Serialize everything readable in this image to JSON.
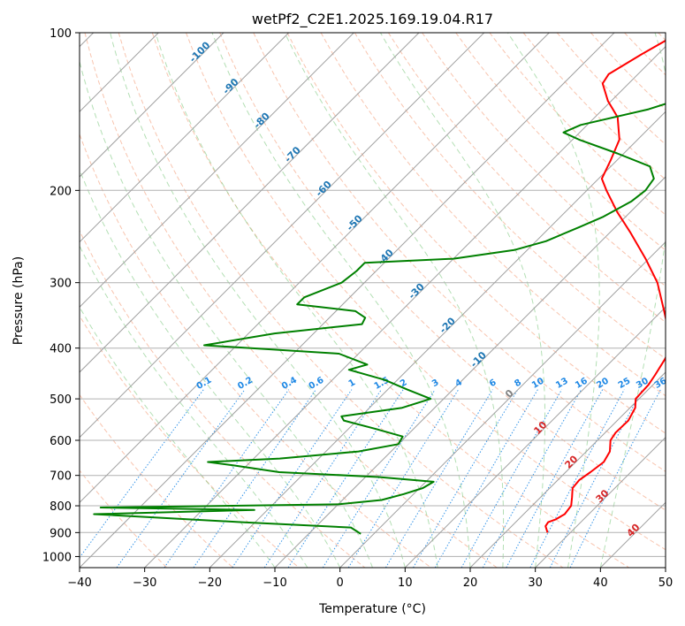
{
  "chart_data": {
    "type": "line",
    "title": "wetPf2_C2E1.2025.169.19.04.R17",
    "xlabel": "Temperature (°C)",
    "ylabel": "Pressure (hPa)",
    "xlim": [
      -40,
      50
    ],
    "ylim": [
      1050,
      100
    ],
    "y_scale": "log",
    "x_ticks": [
      -40,
      -30,
      -20,
      -10,
      0,
      10,
      20,
      30,
      40,
      50
    ],
    "y_ticks": [
      100,
      200,
      300,
      400,
      500,
      600,
      700,
      800,
      900,
      1000
    ],
    "grid": true,
    "colors": {
      "temperature": "#ff0000",
      "dewpoint": "#008000",
      "dry_adiabats": "#f4a582",
      "moist_adiabats": "#74c476",
      "mixing_ratio": "#1e88e5",
      "isotherms": "#808080",
      "isotherm_labels": "#1f77b4",
      "isotherm_labels_warm": "#d62728"
    },
    "isotherm_labels": [
      -100,
      -90,
      -80,
      -70,
      -60,
      -50,
      -40,
      -30,
      -20,
      -10,
      0,
      10,
      20,
      30,
      40
    ],
    "mixing_ratio_labels": [
      "0.1",
      "0.2",
      "0.4",
      "0.6",
      "1",
      "1.5",
      "2",
      "3",
      "4",
      "6",
      "8",
      "10",
      "13",
      "16",
      "20",
      "25",
      "30",
      "36"
    ],
    "series": [
      {
        "role": "temperature",
        "points": [
          {
            "p": 900,
            "t": 26.5
          },
          {
            "p": 875,
            "t": 25.2
          },
          {
            "p": 860,
            "t": 25.0
          },
          {
            "p": 850,
            "t": 25.7
          },
          {
            "p": 830,
            "t": 26.3
          },
          {
            "p": 800,
            "t": 26.0
          },
          {
            "p": 770,
            "t": 24.8
          },
          {
            "p": 740,
            "t": 23.5
          },
          {
            "p": 715,
            "t": 23.3
          },
          {
            "p": 690,
            "t": 23.8
          },
          {
            "p": 660,
            "t": 24.3
          },
          {
            "p": 630,
            "t": 23.6
          },
          {
            "p": 600,
            "t": 22.0
          },
          {
            "p": 580,
            "t": 21.6
          },
          {
            "p": 550,
            "t": 21.7
          },
          {
            "p": 520,
            "t": 20.8
          },
          {
            "p": 500,
            "t": 19.5
          },
          {
            "p": 470,
            "t": 19.3
          },
          {
            "p": 450,
            "t": 18.8
          },
          {
            "p": 420,
            "t": 17.9
          },
          {
            "p": 400,
            "t": 17.0
          },
          {
            "p": 370,
            "t": 14.0
          },
          {
            "p": 340,
            "t": 10.4
          },
          {
            "p": 300,
            "t": 5.0
          },
          {
            "p": 270,
            "t": -0.5
          },
          {
            "p": 240,
            "t": -7.0
          },
          {
            "p": 220,
            "t": -12.0
          },
          {
            "p": 200,
            "t": -17.0
          },
          {
            "p": 190,
            "t": -19.5
          },
          {
            "p": 175,
            "t": -21.0
          },
          {
            "p": 160,
            "t": -22.8
          },
          {
            "p": 145,
            "t": -26.5
          },
          {
            "p": 135,
            "t": -30.5
          },
          {
            "p": 125,
            "t": -34.0
          },
          {
            "p": 120,
            "t": -34.5
          },
          {
            "p": 110,
            "t": -32.5
          },
          {
            "p": 100,
            "t": -30.0
          }
        ]
      },
      {
        "role": "dewpoint",
        "points": [
          {
            "p": 905,
            "t": -2.0
          },
          {
            "p": 895,
            "t": -3.0
          },
          {
            "p": 880,
            "t": -4.5
          },
          {
            "p": 860,
            "t": -22.0
          },
          {
            "p": 830,
            "t": -46.0
          },
          {
            "p": 815,
            "t": -22.0
          },
          {
            "p": 806,
            "t": -46.0
          },
          {
            "p": 795,
            "t": -10.0
          },
          {
            "p": 780,
            "t": -4.0
          },
          {
            "p": 760,
            "t": -1.5
          },
          {
            "p": 740,
            "t": 0.5
          },
          {
            "p": 720,
            "t": 1.2
          },
          {
            "p": 705,
            "t": -8.0
          },
          {
            "p": 690,
            "t": -24.0
          },
          {
            "p": 670,
            "t": -32.0
          },
          {
            "p": 660,
            "t": -36.5
          },
          {
            "p": 650,
            "t": -26.0
          },
          {
            "p": 630,
            "t": -15.0
          },
          {
            "p": 610,
            "t": -10.0
          },
          {
            "p": 590,
            "t": -10.5
          },
          {
            "p": 570,
            "t": -16.0
          },
          {
            "p": 550,
            "t": -22.0
          },
          {
            "p": 540,
            "t": -23.0
          },
          {
            "p": 520,
            "t": -15.0
          },
          {
            "p": 500,
            "t": -12.0
          },
          {
            "p": 480,
            "t": -17.0
          },
          {
            "p": 460,
            "t": -22.0
          },
          {
            "p": 440,
            "t": -29.0
          },
          {
            "p": 430,
            "t": -27.0
          },
          {
            "p": 410,
            "t": -33.0
          },
          {
            "p": 395,
            "t": -55.0
          },
          {
            "p": 375,
            "t": -46.0
          },
          {
            "p": 360,
            "t": -34.0
          },
          {
            "p": 350,
            "t": -34.5
          },
          {
            "p": 340,
            "t": -37.0
          },
          {
            "p": 330,
            "t": -47.0
          },
          {
            "p": 320,
            "t": -47.0
          },
          {
            "p": 300,
            "t": -43.5
          },
          {
            "p": 285,
            "t": -43.0
          },
          {
            "p": 275,
            "t": -43.0
          },
          {
            "p": 270,
            "t": -30.0
          },
          {
            "p": 260,
            "t": -22.0
          },
          {
            "p": 250,
            "t": -18.5
          },
          {
            "p": 235,
            "t": -15.5
          },
          {
            "p": 225,
            "t": -13.5
          },
          {
            "p": 210,
            "t": -11.5
          },
          {
            "p": 200,
            "t": -11.0
          },
          {
            "p": 190,
            "t": -11.5
          },
          {
            "p": 180,
            "t": -14.0
          },
          {
            "p": 170,
            "t": -21.0
          },
          {
            "p": 160,
            "t": -29.0
          },
          {
            "p": 155,
            "t": -32.5
          },
          {
            "p": 150,
            "t": -31.0
          },
          {
            "p": 140,
            "t": -23.0
          },
          {
            "p": 130,
            "t": -17.5
          },
          {
            "p": 120,
            "t": -16.0
          },
          {
            "p": 110,
            "t": -19.0
          },
          {
            "p": 100,
            "t": -18.0
          }
        ]
      }
    ]
  }
}
